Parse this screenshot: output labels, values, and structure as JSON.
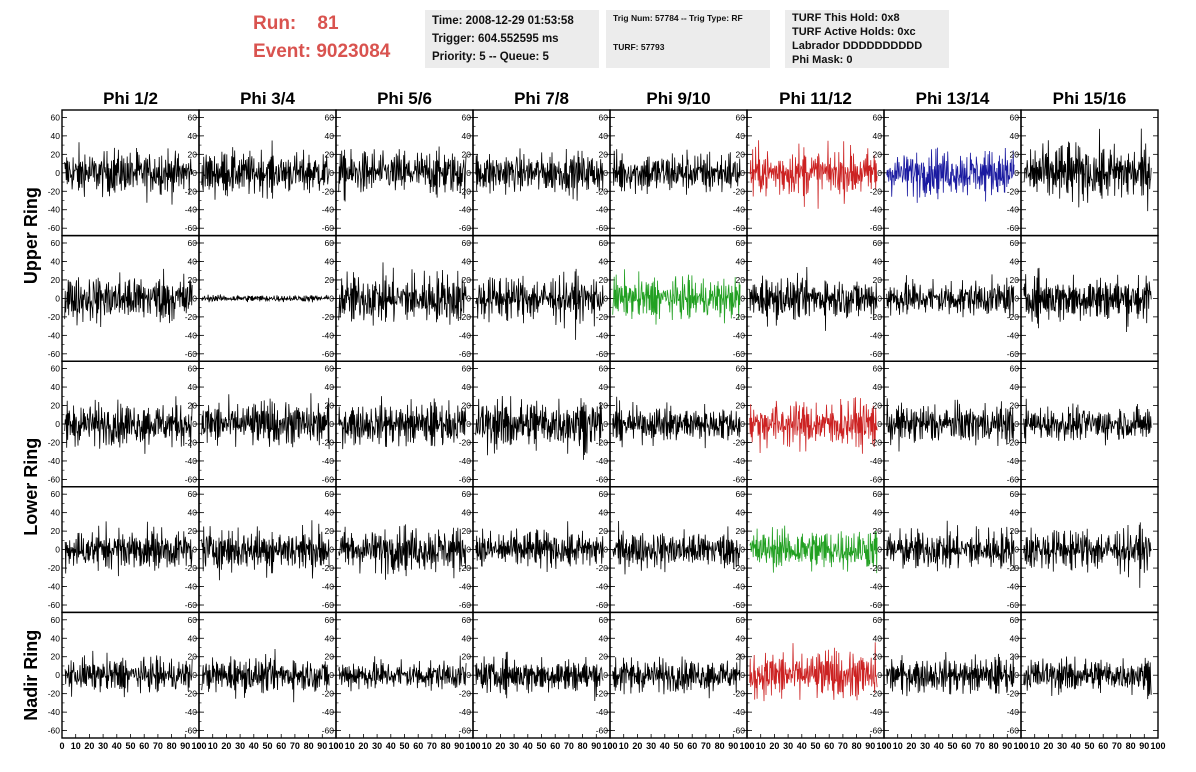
{
  "header": {
    "run_label": "Run:",
    "run_value": "81",
    "event_label": "Event:",
    "event_value": "9023084"
  },
  "info_boxes": {
    "time": "Time: 2008-12-29 01:53:58",
    "trigger": "Trigger: 604.552595 ms",
    "priority": "Priority: 5 -- Queue: 5",
    "trig_num": "Trig Num: 57784 -- Trig Type: RF",
    "turf": "TURF: 57793",
    "turf_this_hold": "TURF This Hold: 0x8",
    "turf_active_holds": "TURF Active Holds: 0xc",
    "labrador": "Labrador DDDDDDDDDD",
    "phi_mask": "Phi Mask: 0"
  },
  "colors": {
    "default": "#000000",
    "red": "#cc2222",
    "green": "#22a022",
    "blue": "#1a1aa0",
    "header_red": "#d9534f"
  },
  "chart_data": {
    "type": "line",
    "columns": [
      "Phi 1/2",
      "Phi 3/4",
      "Phi 5/6",
      "Phi 7/8",
      "Phi 9/10",
      "Phi 11/12",
      "Phi 13/14",
      "Phi 15/16"
    ],
    "ring_labels": [
      {
        "label": "Upper Ring",
        "rows": [
          0,
          1
        ]
      },
      {
        "label": "Lower Ring",
        "rows": [
          2,
          3
        ]
      },
      {
        "label": "Nadir Ring",
        "rows": [
          4
        ]
      }
    ],
    "xlim": [
      0,
      100
    ],
    "ylim": [
      -68,
      68
    ],
    "x_ticks": [
      "0",
      "10",
      "20",
      "30",
      "40",
      "50",
      "60",
      "70",
      "80",
      "90",
      "100"
    ],
    "y_ticks": [
      -60,
      -40,
      -20,
      0,
      20,
      40,
      60
    ],
    "samples_per_trace": 260,
    "amplitude_grid": [
      [
        13,
        12,
        13,
        12,
        12,
        14,
        13,
        17
      ],
      [
        14,
        2,
        15,
        13,
        12,
        12,
        11,
        13
      ],
      [
        13,
        13,
        12,
        15,
        10,
        14,
        12,
        10
      ],
      [
        12,
        13,
        13,
        11,
        11,
        12,
        12,
        12
      ],
      [
        10,
        10,
        9,
        10,
        10,
        14,
        10,
        10
      ]
    ],
    "color_grid": [
      [
        "default",
        "default",
        "default",
        "default",
        "default",
        "red",
        "blue",
        "default"
      ],
      [
        "default",
        "default",
        "default",
        "default",
        "green",
        "default",
        "default",
        "default"
      ],
      [
        "default",
        "default",
        "default",
        "default",
        "default",
        "red",
        "default",
        "default"
      ],
      [
        "default",
        "default",
        "default",
        "default",
        "default",
        "green",
        "default",
        "default"
      ],
      [
        "default",
        "default",
        "default",
        "default",
        "default",
        "red",
        "default",
        "default"
      ]
    ]
  }
}
